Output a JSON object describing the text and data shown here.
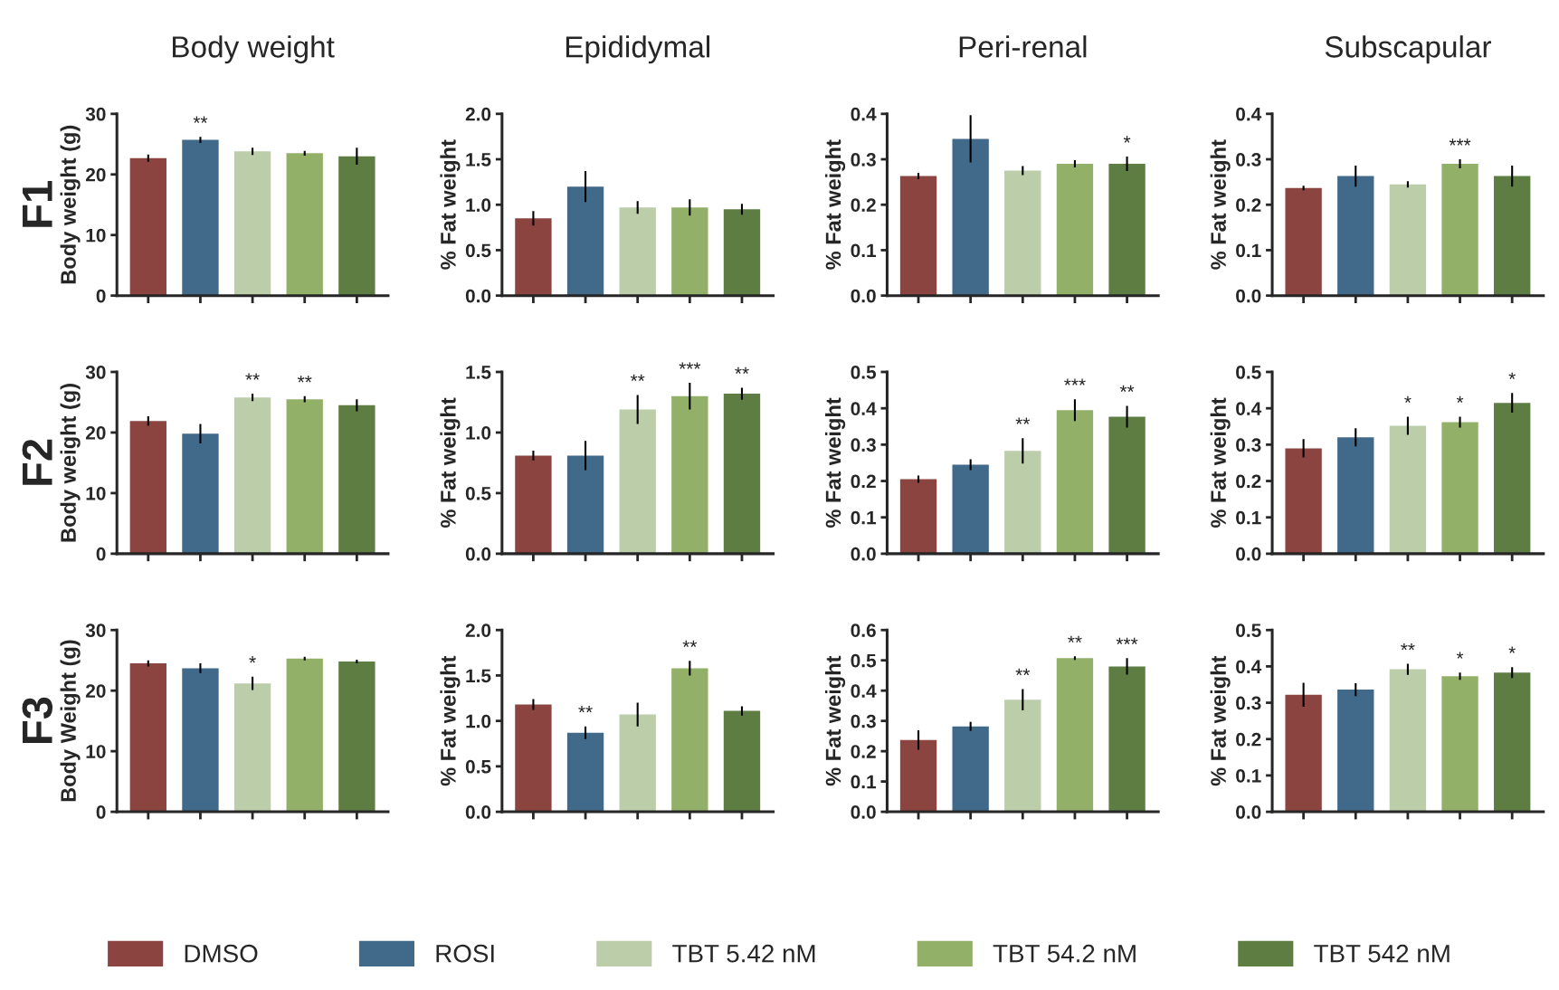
{
  "chart_data": [
    {
      "type": "bar",
      "title": "Body weight",
      "ylabel": "Body weight (g)",
      "annotations": [
        "F1"
      ],
      "legend": "bottom",
      "categories": [
        null
      ],
      "ylim": [
        0,
        30
      ],
      "yticks": [
        0,
        10,
        20,
        30
      ],
      "series": [
        {
          "name": "DMSO",
          "color": "#8b4440",
          "values": [
            22.7
          ],
          "errors": [
            0.6
          ],
          "value_labels": [
            null
          ]
        },
        {
          "name": "ROSI",
          "color": "#41698a",
          "values": [
            25.7
          ],
          "errors": [
            0.5
          ],
          "value_labels": [
            "**"
          ]
        },
        {
          "name": "TBT 5.42 nM",
          "color": "#bccdaa",
          "values": [
            23.8
          ],
          "errors": [
            0.6
          ],
          "value_labels": [
            null
          ]
        },
        {
          "name": "TBT 54.2 nM",
          "color": "#93b068",
          "values": [
            23.5
          ],
          "errors": [
            0.4
          ],
          "value_labels": [
            null
          ]
        },
        {
          "name": "TBT 542 nM",
          "color": "#5d7d42",
          "values": [
            23.0
          ],
          "errors": [
            1.4
          ],
          "value_labels": [
            null
          ]
        }
      ]
    },
    {
      "type": "bar",
      "title": "Epididymal",
      "ylabel": "% Fat weight",
      "categories": [
        null
      ],
      "ylim": [
        0,
        2
      ],
      "yticks": [
        {
          "value": 0,
          "label": "0.0"
        },
        {
          "value": 0.5,
          "label": "0.5"
        },
        {
          "value": 1,
          "label": "1.0"
        },
        {
          "value": 1.5,
          "label": "1.5"
        },
        {
          "value": 2,
          "label": "2.0"
        }
      ],
      "series": [
        {
          "color": "#8b4440",
          "values": [
            0.85
          ],
          "errors": [
            0.08
          ],
          "value_labels": [
            null
          ]
        },
        {
          "color": "#41698a",
          "values": [
            1.2
          ],
          "errors": [
            0.17
          ],
          "value_labels": [
            null
          ]
        },
        {
          "color": "#bccdaa",
          "values": [
            0.97
          ],
          "errors": [
            0.07
          ],
          "value_labels": [
            null
          ]
        },
        {
          "color": "#93b068",
          "values": [
            0.97
          ],
          "errors": [
            0.09
          ],
          "value_labels": [
            null
          ]
        },
        {
          "color": "#5d7d42",
          "values": [
            0.95
          ],
          "errors": [
            0.06
          ],
          "value_labels": [
            null
          ]
        }
      ]
    },
    {
      "type": "bar",
      "title": "Peri-renal",
      "ylabel": "% Fat weight",
      "categories": [
        null
      ],
      "ylim": [
        0,
        0.4
      ],
      "yticks": [
        {
          "value": 0,
          "label": "0.0"
        },
        {
          "value": 0.1,
          "label": "0.1"
        },
        {
          "value": 0.2,
          "label": "0.2"
        },
        {
          "value": 0.3,
          "label": "0.3"
        },
        {
          "value": 0.4,
          "label": "0.4"
        }
      ],
      "series": [
        {
          "color": "#8b4440",
          "values": [
            0.263
          ],
          "errors": [
            0.007
          ],
          "value_labels": [
            null
          ]
        },
        {
          "color": "#41698a",
          "values": [
            0.345
          ],
          "errors": [
            0.052
          ],
          "value_labels": [
            null
          ]
        },
        {
          "color": "#bccdaa",
          "values": [
            0.275
          ],
          "errors": [
            0.01
          ],
          "value_labels": [
            null
          ]
        },
        {
          "color": "#93b068",
          "values": [
            0.29
          ],
          "errors": [
            0.008
          ],
          "value_labels": [
            null
          ]
        },
        {
          "color": "#5d7d42",
          "values": [
            0.29
          ],
          "errors": [
            0.016
          ],
          "value_labels": [
            "*"
          ]
        }
      ]
    },
    {
      "type": "bar",
      "title": "Subscapular",
      "ylabel": "% Fat weight",
      "categories": [
        null
      ],
      "ylim": [
        0,
        0.4
      ],
      "yticks": [
        {
          "value": 0,
          "label": "0.0"
        },
        {
          "value": 0.1,
          "label": "0.1"
        },
        {
          "value": 0.2,
          "label": "0.2"
        },
        {
          "value": 0.3,
          "label": "0.3"
        },
        {
          "value": 0.4,
          "label": "0.4"
        }
      ],
      "series": [
        {
          "color": "#8b4440",
          "values": [
            0.237
          ],
          "errors": [
            0.005
          ],
          "value_labels": [
            null
          ]
        },
        {
          "color": "#41698a",
          "values": [
            0.263
          ],
          "errors": [
            0.023
          ],
          "value_labels": [
            null
          ]
        },
        {
          "color": "#bccdaa",
          "values": [
            0.245
          ],
          "errors": [
            0.007
          ],
          "value_labels": [
            null
          ]
        },
        {
          "color": "#93b068",
          "values": [
            0.29
          ],
          "errors": [
            0.01
          ],
          "value_labels": [
            "***"
          ]
        },
        {
          "color": "#5d7d42",
          "values": [
            0.263
          ],
          "errors": [
            0.023
          ],
          "value_labels": [
            null
          ]
        }
      ]
    },
    {
      "type": "bar",
      "ylabel": "Body weight (g)",
      "annotations": [
        "F2"
      ],
      "categories": [
        null
      ],
      "ylim": [
        0,
        30
      ],
      "yticks": [
        0,
        10,
        20,
        30
      ],
      "series": [
        {
          "color": "#8b4440",
          "values": [
            21.9
          ],
          "errors": [
            0.8
          ],
          "value_labels": [
            null
          ]
        },
        {
          "color": "#41698a",
          "values": [
            19.8
          ],
          "errors": [
            1.6
          ],
          "value_labels": [
            null
          ]
        },
        {
          "color": "#bccdaa",
          "values": [
            25.8
          ],
          "errors": [
            0.6
          ],
          "value_labels": [
            "**"
          ]
        },
        {
          "color": "#93b068",
          "values": [
            25.5
          ],
          "errors": [
            0.5
          ],
          "value_labels": [
            "**"
          ]
        },
        {
          "color": "#5d7d42",
          "values": [
            24.5
          ],
          "errors": [
            1.0
          ],
          "value_labels": [
            null
          ]
        }
      ]
    },
    {
      "type": "bar",
      "ylabel": "% Fat weight",
      "categories": [
        null
      ],
      "ylim": [
        0,
        1.5
      ],
      "yticks": [
        {
          "value": 0,
          "label": "0.0"
        },
        {
          "value": 0.5,
          "label": "0.5"
        },
        {
          "value": 1,
          "label": "1.0"
        },
        {
          "value": 1.5,
          "label": "1.5"
        }
      ],
      "series": [
        {
          "color": "#8b4440",
          "values": [
            0.81
          ],
          "errors": [
            0.04
          ],
          "value_labels": [
            null
          ]
        },
        {
          "color": "#41698a",
          "values": [
            0.81
          ],
          "errors": [
            0.12
          ],
          "value_labels": [
            null
          ]
        },
        {
          "color": "#bccdaa",
          "values": [
            1.19
          ],
          "errors": [
            0.12
          ],
          "value_labels": [
            "**"
          ]
        },
        {
          "color": "#93b068",
          "values": [
            1.3
          ],
          "errors": [
            0.11
          ],
          "value_labels": [
            "***"
          ]
        },
        {
          "color": "#5d7d42",
          "values": [
            1.32
          ],
          "errors": [
            0.05
          ],
          "value_labels": [
            "**"
          ]
        }
      ]
    },
    {
      "type": "bar",
      "ylabel": "% Fat weight",
      "categories": [
        null
      ],
      "ylim": [
        0,
        0.5
      ],
      "yticks": [
        {
          "value": 0,
          "label": "0.0"
        },
        {
          "value": 0.1,
          "label": "0.1"
        },
        {
          "value": 0.2,
          "label": "0.2"
        },
        {
          "value": 0.3,
          "label": "0.3"
        },
        {
          "value": 0.4,
          "label": "0.4"
        },
        {
          "value": 0.5,
          "label": "0.5"
        }
      ],
      "series": [
        {
          "color": "#8b4440",
          "values": [
            0.205
          ],
          "errors": [
            0.01
          ],
          "value_labels": [
            null
          ]
        },
        {
          "color": "#41698a",
          "values": [
            0.245
          ],
          "errors": [
            0.015
          ],
          "value_labels": [
            null
          ]
        },
        {
          "color": "#bccdaa",
          "values": [
            0.283
          ],
          "errors": [
            0.035
          ],
          "value_labels": [
            "**"
          ]
        },
        {
          "color": "#93b068",
          "values": [
            0.395
          ],
          "errors": [
            0.03
          ],
          "value_labels": [
            "***"
          ]
        },
        {
          "color": "#5d7d42",
          "values": [
            0.377
          ],
          "errors": [
            0.03
          ],
          "value_labels": [
            "**"
          ]
        }
      ]
    },
    {
      "type": "bar",
      "ylabel": "% Fat weight",
      "categories": [
        null
      ],
      "ylim": [
        0,
        0.5
      ],
      "yticks": [
        {
          "value": 0,
          "label": "0.0"
        },
        {
          "value": 0.1,
          "label": "0.1"
        },
        {
          "value": 0.2,
          "label": "0.2"
        },
        {
          "value": 0.3,
          "label": "0.3"
        },
        {
          "value": 0.4,
          "label": "0.4"
        },
        {
          "value": 0.5,
          "label": "0.5"
        }
      ],
      "series": [
        {
          "color": "#8b4440",
          "values": [
            0.29
          ],
          "errors": [
            0.025
          ],
          "value_labels": [
            null
          ]
        },
        {
          "color": "#41698a",
          "values": [
            0.32
          ],
          "errors": [
            0.025
          ],
          "value_labels": [
            null
          ]
        },
        {
          "color": "#bccdaa",
          "values": [
            0.352
          ],
          "errors": [
            0.025
          ],
          "value_labels": [
            "*"
          ]
        },
        {
          "color": "#93b068",
          "values": [
            0.362
          ],
          "errors": [
            0.015
          ],
          "value_labels": [
            "*"
          ]
        },
        {
          "color": "#5d7d42",
          "values": [
            0.415
          ],
          "errors": [
            0.027
          ],
          "value_labels": [
            "*"
          ]
        }
      ]
    },
    {
      "type": "bar",
      "ylabel": "Body Weight (g)",
      "annotations": [
        "F3"
      ],
      "categories": [
        null
      ],
      "ylim": [
        0,
        30
      ],
      "yticks": [
        0,
        10,
        20,
        30
      ],
      "series": [
        {
          "color": "#8b4440",
          "values": [
            24.5
          ],
          "errors": [
            0.5
          ],
          "value_labels": [
            null
          ]
        },
        {
          "color": "#41698a",
          "values": [
            23.7
          ],
          "errors": [
            0.8
          ],
          "value_labels": [
            null
          ]
        },
        {
          "color": "#bccdaa",
          "values": [
            21.2
          ],
          "errors": [
            1.1
          ],
          "value_labels": [
            "*"
          ]
        },
        {
          "color": "#93b068",
          "values": [
            25.3
          ],
          "errors": [
            0.3
          ],
          "value_labels": [
            null
          ]
        },
        {
          "color": "#5d7d42",
          "values": [
            24.8
          ],
          "errors": [
            0.3
          ],
          "value_labels": [
            null
          ]
        }
      ]
    },
    {
      "type": "bar",
      "ylabel": "% Fat weight",
      "categories": [
        null
      ],
      "ylim": [
        0,
        2
      ],
      "yticks": [
        {
          "value": 0,
          "label": "0.0"
        },
        {
          "value": 0.5,
          "label": "0.5"
        },
        {
          "value": 1,
          "label": "1.0"
        },
        {
          "value": 1.5,
          "label": "1.5"
        },
        {
          "value": 2,
          "label": "2.0"
        }
      ],
      "series": [
        {
          "color": "#8b4440",
          "values": [
            1.18
          ],
          "errors": [
            0.06
          ],
          "value_labels": [
            null
          ]
        },
        {
          "color": "#41698a",
          "values": [
            0.87
          ],
          "errors": [
            0.07
          ],
          "value_labels": [
            "**"
          ]
        },
        {
          "color": "#bccdaa",
          "values": [
            1.07
          ],
          "errors": [
            0.13
          ],
          "value_labels": [
            null
          ]
        },
        {
          "color": "#93b068",
          "values": [
            1.58
          ],
          "errors": [
            0.08
          ],
          "value_labels": [
            "**"
          ]
        },
        {
          "color": "#5d7d42",
          "values": [
            1.11
          ],
          "errors": [
            0.05
          ],
          "value_labels": [
            null
          ]
        }
      ]
    },
    {
      "type": "bar",
      "ylabel": "% Fat weight",
      "categories": [
        null
      ],
      "ylim": [
        0,
        0.6
      ],
      "yticks": [
        {
          "value": 0,
          "label": "0.0"
        },
        {
          "value": 0.1,
          "label": "0.1"
        },
        {
          "value": 0.2,
          "label": "0.2"
        },
        {
          "value": 0.3,
          "label": "0.3"
        },
        {
          "value": 0.4,
          "label": "0.4"
        },
        {
          "value": 0.5,
          "label": "0.5"
        },
        {
          "value": 0.6,
          "label": "0.6"
        }
      ],
      "series": [
        {
          "color": "#8b4440",
          "values": [
            0.237
          ],
          "errors": [
            0.032
          ],
          "value_labels": [
            null
          ]
        },
        {
          "color": "#41698a",
          "values": [
            0.282
          ],
          "errors": [
            0.015
          ],
          "value_labels": [
            null
          ]
        },
        {
          "color": "#bccdaa",
          "values": [
            0.37
          ],
          "errors": [
            0.035
          ],
          "value_labels": [
            "**"
          ]
        },
        {
          "color": "#93b068",
          "values": [
            0.507
          ],
          "errors": [
            0.006
          ],
          "value_labels": [
            "**"
          ]
        },
        {
          "color": "#5d7d42",
          "values": [
            0.48
          ],
          "errors": [
            0.027
          ],
          "value_labels": [
            "***"
          ]
        }
      ]
    },
    {
      "type": "bar",
      "ylabel": "% Fat weight",
      "categories": [
        null
      ],
      "ylim": [
        0,
        0.5
      ],
      "yticks": [
        {
          "value": 0,
          "label": "0.0"
        },
        {
          "value": 0.1,
          "label": "0.1"
        },
        {
          "value": 0.2,
          "label": "0.2"
        },
        {
          "value": 0.3,
          "label": "0.3"
        },
        {
          "value": 0.4,
          "label": "0.4"
        },
        {
          "value": 0.5,
          "label": "0.5"
        }
      ],
      "series": [
        {
          "color": "#8b4440",
          "values": [
            0.322
          ],
          "errors": [
            0.033
          ],
          "value_labels": [
            null
          ]
        },
        {
          "color": "#41698a",
          "values": [
            0.336
          ],
          "errors": [
            0.018
          ],
          "value_labels": [
            null
          ]
        },
        {
          "color": "#bccdaa",
          "values": [
            0.392
          ],
          "errors": [
            0.015
          ],
          "value_labels": [
            "**"
          ]
        },
        {
          "color": "#93b068",
          "values": [
            0.373
          ],
          "errors": [
            0.01
          ],
          "value_labels": [
            "*"
          ]
        },
        {
          "color": "#5d7d42",
          "values": [
            0.383
          ],
          "errors": [
            0.015
          ],
          "value_labels": [
            "*"
          ]
        }
      ]
    }
  ]
}
